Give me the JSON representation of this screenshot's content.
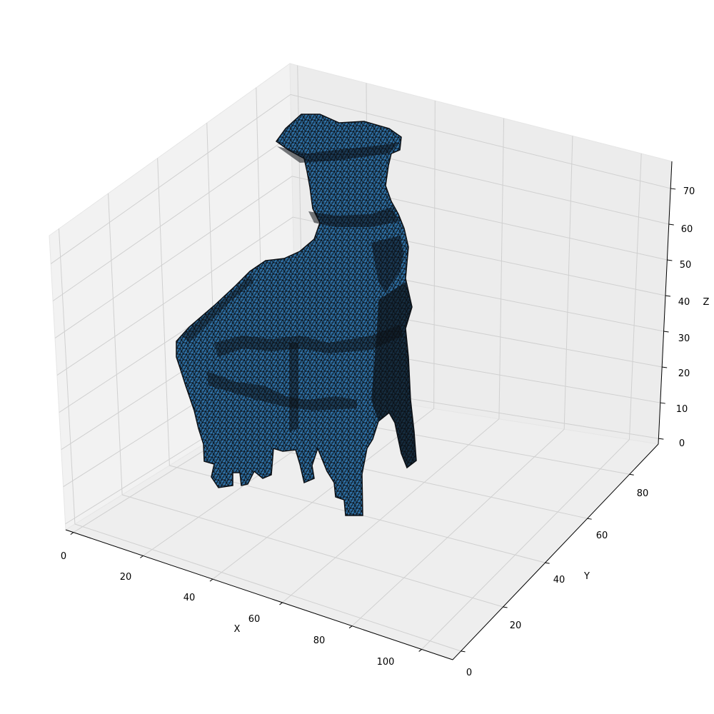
{
  "chart_data": {
    "type": "mesh3d",
    "title": "",
    "xlabel": "X",
    "ylabel": "Y",
    "zlabel": "Z",
    "xlim": [
      0,
      110
    ],
    "ylim": [
      0,
      95
    ],
    "zlim": [
      0,
      77
    ],
    "x_ticks": [
      "0",
      "20",
      "40",
      "60",
      "80",
      "100"
    ],
    "y_ticks": [
      "0",
      "20",
      "40",
      "60",
      "80"
    ],
    "z_ticks": [
      "0",
      "10",
      "20",
      "30",
      "40",
      "50",
      "60",
      "70"
    ],
    "grid": true,
    "legend": "none",
    "face_color": "#2f72a8",
    "edge_color": "#0b0f14",
    "pane_color": "#f2f2f2",
    "grid_color": "#d0d0d0"
  }
}
